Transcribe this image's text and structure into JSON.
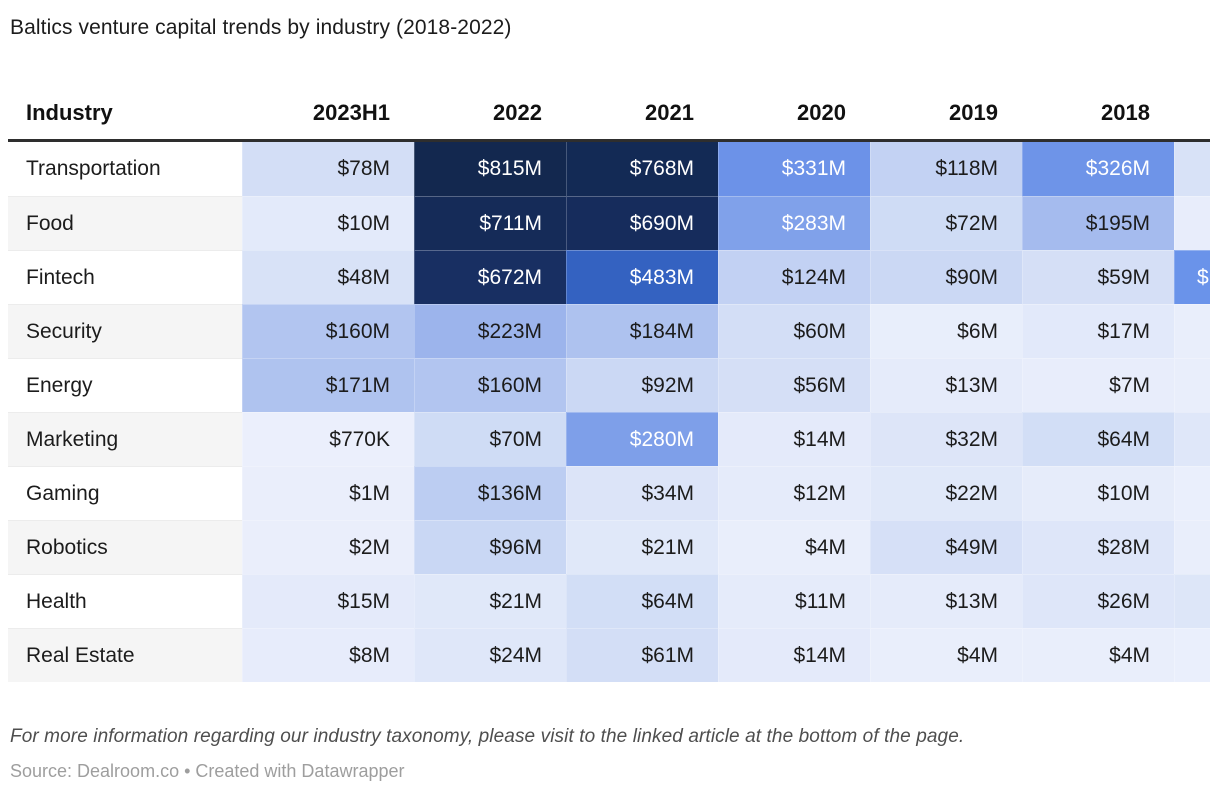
{
  "title": "Baltics venture capital trends by industry (2018-2022)",
  "footnote": "For more information regarding our industry taxonomy, please visit to the linked article at the bottom of the page.",
  "source_line": "Source: Dealroom.co • Created with Datawrapper",
  "colors": {
    "header_rule": "#2e2e2e",
    "zebra_alt": "#f5f5f5",
    "text_dark": "#1c1c1c",
    "text_light": "#ffffff",
    "scale_min": "#ebeffc",
    "scale_max": "#13284f"
  },
  "table": {
    "columns": [
      "Industry",
      "2023H1",
      "2022",
      "2021",
      "2020",
      "2019",
      "2018"
    ],
    "partial_column_note": "next column clipped at right edge, header not visible",
    "rows": [
      {
        "label": "Transportation",
        "cells": [
          {
            "t": "$78M",
            "bg": "#d3def6",
            "w": false
          },
          {
            "t": "$815M",
            "bg": "#13284f",
            "w": true
          },
          {
            "t": "$768M",
            "bg": "#132a55",
            "w": true
          },
          {
            "t": "$331M",
            "bg": "#6c92e8",
            "w": true
          },
          {
            "t": "$118M",
            "bg": "#c3d2f3",
            "w": false
          },
          {
            "t": "$326M",
            "bg": "#6e94e8",
            "w": true
          }
        ],
        "partial": {
          "t": "",
          "bg": "#d8e2f7"
        }
      },
      {
        "label": "Food",
        "cells": [
          {
            "t": "$10M",
            "bg": "#e3eafa",
            "w": false
          },
          {
            "t": "$711M",
            "bg": "#152b58",
            "w": true
          },
          {
            "t": "$690M",
            "bg": "#162c5c",
            "w": true
          },
          {
            "t": "$283M",
            "bg": "#80a1ea",
            "w": true
          },
          {
            "t": "$72M",
            "bg": "#cfdcf5",
            "w": false
          },
          {
            "t": "$195M",
            "bg": "#a5bbee",
            "w": false
          }
        ],
        "partial": {
          "t": "",
          "bg": "#e8edfb"
        }
      },
      {
        "label": "Fintech",
        "cells": [
          {
            "t": "$48M",
            "bg": "#d8e2f7",
            "w": false
          },
          {
            "t": "$672M",
            "bg": "#182f62",
            "w": true
          },
          {
            "t": "$483M",
            "bg": "#3462c1",
            "w": true
          },
          {
            "t": "$124M",
            "bg": "#c2d1f3",
            "w": false
          },
          {
            "t": "$90M",
            "bg": "#cbd8f4",
            "w": false
          },
          {
            "t": "$59M",
            "bg": "#d5dff6",
            "w": false
          }
        ],
        "partial": {
          "t": "$",
          "bg": "#6a93ea"
        }
      },
      {
        "label": "Security",
        "cells": [
          {
            "t": "$160M",
            "bg": "#b2c5f0",
            "w": false
          },
          {
            "t": "$223M",
            "bg": "#9cb4ec",
            "w": false
          },
          {
            "t": "$184M",
            "bg": "#aec2ef",
            "w": false
          },
          {
            "t": "$60M",
            "bg": "#d3def6",
            "w": false
          },
          {
            "t": "$6M",
            "bg": "#e8eefb",
            "w": false
          },
          {
            "t": "$17M",
            "bg": "#e2e9fa",
            "w": false
          }
        ],
        "partial": {
          "t": "",
          "bg": "#e9eefb"
        }
      },
      {
        "label": "Energy",
        "cells": [
          {
            "t": "$171M",
            "bg": "#afc3ef",
            "w": false
          },
          {
            "t": "$160M",
            "bg": "#b2c5f0",
            "w": false
          },
          {
            "t": "$92M",
            "bg": "#cbd8f4",
            "w": false
          },
          {
            "t": "$56M",
            "bg": "#d5dff6",
            "w": false
          },
          {
            "t": "$13M",
            "bg": "#e5ebfa",
            "w": false
          },
          {
            "t": "$7M",
            "bg": "#e8edfb",
            "w": false
          }
        ],
        "partial": {
          "t": "",
          "bg": "#e9eefb"
        }
      },
      {
        "label": "Marketing",
        "cells": [
          {
            "t": "$770K",
            "bg": "#ebeffc",
            "w": false
          },
          {
            "t": "$70M",
            "bg": "#cfdcf5",
            "w": false
          },
          {
            "t": "$280M",
            "bg": "#7e9fe9",
            "w": true
          },
          {
            "t": "$14M",
            "bg": "#e4eafa",
            "w": false
          },
          {
            "t": "$32M",
            "bg": "#dde5f8",
            "w": false
          },
          {
            "t": "$64M",
            "bg": "#d2def6",
            "w": false
          }
        ],
        "partial": {
          "t": "",
          "bg": "#dfe7f9"
        }
      },
      {
        "label": "Gaming",
        "cells": [
          {
            "t": "$1M",
            "bg": "#eaeefb",
            "w": false
          },
          {
            "t": "$136M",
            "bg": "#bccdf2",
            "w": false
          },
          {
            "t": "$34M",
            "bg": "#dce4f8",
            "w": false
          },
          {
            "t": "$12M",
            "bg": "#e5ebfa",
            "w": false
          },
          {
            "t": "$22M",
            "bg": "#e0e8f9",
            "w": false
          },
          {
            "t": "$10M",
            "bg": "#e6ecfa",
            "w": false
          }
        ],
        "partial": {
          "t": "",
          "bg": "#eaeffc"
        }
      },
      {
        "label": "Robotics",
        "cells": [
          {
            "t": "$2M",
            "bg": "#eaeefb",
            "w": false
          },
          {
            "t": "$96M",
            "bg": "#c9d7f4",
            "w": false
          },
          {
            "t": "$21M",
            "bg": "#e0e8f9",
            "w": false
          },
          {
            "t": "$4M",
            "bg": "#e9eefb",
            "w": false
          },
          {
            "t": "$49M",
            "bg": "#d6e0f7",
            "w": false
          },
          {
            "t": "$28M",
            "bg": "#dee6f9",
            "w": false
          }
        ],
        "partial": {
          "t": "",
          "bg": "#e9eefb"
        }
      },
      {
        "label": "Health",
        "cells": [
          {
            "t": "$15M",
            "bg": "#e4eafa",
            "w": false
          },
          {
            "t": "$21M",
            "bg": "#e0e8f9",
            "w": false
          },
          {
            "t": "$64M",
            "bg": "#d2def6",
            "w": false
          },
          {
            "t": "$11M",
            "bg": "#e5ebfa",
            "w": false
          },
          {
            "t": "$13M",
            "bg": "#e5ebfa",
            "w": false
          },
          {
            "t": "$26M",
            "bg": "#dee6f9",
            "w": false
          }
        ],
        "partial": {
          "t": "",
          "bg": "#dde6f8"
        }
      },
      {
        "label": "Real Estate",
        "cells": [
          {
            "t": "$8M",
            "bg": "#e7ecfb",
            "w": false
          },
          {
            "t": "$24M",
            "bg": "#dfe7f9",
            "w": false
          },
          {
            "t": "$61M",
            "bg": "#d3def6",
            "w": false
          },
          {
            "t": "$14M",
            "bg": "#e4eafa",
            "w": false
          },
          {
            "t": "$4M",
            "bg": "#e9eefb",
            "w": false
          },
          {
            "t": "$4M",
            "bg": "#e9eefb",
            "w": false
          }
        ],
        "partial": {
          "t": "",
          "bg": "#eaeffc"
        }
      }
    ]
  },
  "chart_data": {
    "type": "heatmap",
    "title": "Baltics venture capital trends by industry (2018-2022)",
    "columns": [
      "2023H1",
      "2022",
      "2021",
      "2020",
      "2019",
      "2018"
    ],
    "rows": [
      "Transportation",
      "Food",
      "Fintech",
      "Security",
      "Energy",
      "Marketing",
      "Gaming",
      "Robotics",
      "Health",
      "Real Estate"
    ],
    "values_usd_millions": [
      [
        78,
        815,
        768,
        331,
        118,
        326
      ],
      [
        10,
        711,
        690,
        283,
        72,
        195
      ],
      [
        48,
        672,
        483,
        124,
        90,
        59
      ],
      [
        160,
        223,
        184,
        60,
        6,
        17
      ],
      [
        171,
        160,
        92,
        56,
        13,
        7
      ],
      [
        0.77,
        70,
        280,
        14,
        32,
        64
      ],
      [
        1,
        136,
        34,
        12,
        22,
        10
      ],
      [
        2,
        96,
        21,
        4,
        49,
        28
      ],
      [
        15,
        21,
        64,
        11,
        13,
        26
      ],
      [
        8,
        24,
        61,
        14,
        4,
        4
      ]
    ],
    "cell_labels": [
      [
        "$78M",
        "$815M",
        "$768M",
        "$331M",
        "$118M",
        "$326M"
      ],
      [
        "$10M",
        "$711M",
        "$690M",
        "$283M",
        "$72M",
        "$195M"
      ],
      [
        "$48M",
        "$672M",
        "$483M",
        "$124M",
        "$90M",
        "$59M"
      ],
      [
        "$160M",
        "$223M",
        "$184M",
        "$60M",
        "$6M",
        "$17M"
      ],
      [
        "$171M",
        "$160M",
        "$92M",
        "$56M",
        "$13M",
        "$7M"
      ],
      [
        "$770K",
        "$70M",
        "$280M",
        "$14M",
        "$32M",
        "$64M"
      ],
      [
        "$1M",
        "$136M",
        "$34M",
        "$12M",
        "$22M",
        "$10M"
      ],
      [
        "$2M",
        "$96M",
        "$21M",
        "$4M",
        "$49M",
        "$28M"
      ],
      [
        "$15M",
        "$21M",
        "$64M",
        "$11M",
        "$13M",
        "$26M"
      ],
      [
        "$8M",
        "$24M",
        "$61M",
        "$14M",
        "$4M",
        "$4M"
      ]
    ],
    "color_scale": {
      "min_color": "#ebeffc",
      "max_color": "#13284f",
      "white_text_threshold_musd": 250
    },
    "legend_position": "none",
    "grid": false
  }
}
